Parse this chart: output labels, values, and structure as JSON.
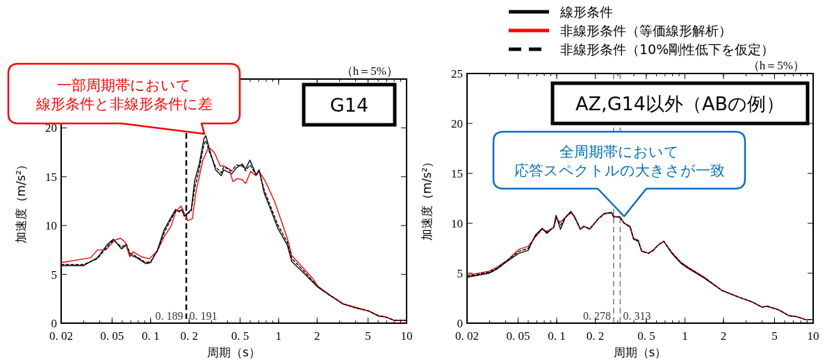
{
  "chart_data": [
    {
      "type": "line",
      "xlabel": "周期（s）",
      "ylabel": "加速度（m/s²）",
      "log": "x",
      "xlim": [
        0.02,
        10
      ],
      "ylim": [
        0,
        25
      ],
      "xticks": [
        {
          "value": 0.02,
          "label": "0. 02"
        },
        {
          "value": 0.05,
          "label": "0. 05"
        },
        {
          "value": 0.1,
          "label": "0. 1"
        },
        {
          "value": 0.2,
          "label": "0. 2"
        },
        {
          "value": 0.5,
          "label": "0. 5"
        },
        1,
        2,
        5,
        10
      ],
      "yticks": [
        0,
        5,
        10,
        15,
        20,
        {
          "value": 25,
          "label": null
        }
      ],
      "grid": false,
      "legend": false,
      "series": [
        {
          "color": "#000000",
          "line_style": "solid",
          "x": [
            0.02,
            0.03,
            0.0384,
            0.0462,
            0.0513,
            0.0593,
            0.0646,
            0.0688,
            0.0779,
            0.0918,
            0.1,
            0.113,
            0.128,
            0.144,
            0.157,
            0.167,
            0.176,
            0.183,
            0.195,
            0.208,
            0.221,
            0.24,
            0.261,
            0.27,
            0.29,
            0.322,
            0.357,
            0.372,
            0.431,
            0.468,
            0.52,
            0.553,
            0.597,
            0.667,
            0.705,
            0.773,
            0.875,
            0.992,
            1.17,
            1.27,
            1.64,
            2.02,
            2.48,
            3.19,
            3.93,
            5.05,
            6.1,
            6.76,
            7.98,
            9.44,
            10
          ],
          "values": [
            5.9,
            5.9,
            6.7,
            8.1,
            8.6,
            7.6,
            8.0,
            7.0,
            6.7,
            6.1,
            6.2,
            7.5,
            9.6,
            10.8,
            11.65,
            11.4,
            11.65,
            10.95,
            11.3,
            11.65,
            14.6,
            16.3,
            18.9,
            19.2,
            17.7,
            15.7,
            15.1,
            15.7,
            15.3,
            15.9,
            16.3,
            15.8,
            16.7,
            15.2,
            15.7,
            13.3,
            11.5,
            9.65,
            8.0,
            6.3,
            4.9,
            3.7,
            2.9,
            1.96,
            1.6,
            1.25,
            0.71,
            0.66,
            0.3,
            0.3,
            0.3
          ]
        },
        {
          "color": "#ff0000",
          "line_style": "solid",
          "x": [
            0.02,
            0.034,
            0.0384,
            0.0447,
            0.0524,
            0.0581,
            0.0632,
            0.0688,
            0.0732,
            0.0846,
            0.0978,
            0.113,
            0.128,
            0.144,
            0.157,
            0.173,
            0.183,
            0.195,
            0.212,
            0.226,
            0.256,
            0.284,
            0.309,
            0.322,
            0.35,
            0.372,
            0.413,
            0.439,
            0.477,
            0.52,
            0.553,
            0.605,
            0.667,
            0.705,
            0.79,
            0.928,
            1.17,
            1.27,
            1.57,
            1.84,
            2.02,
            2.48,
            3.19,
            3.93,
            5.05,
            6.1,
            6.76,
            7.98,
            10
          ],
          "values": [
            6.2,
            6.7,
            7.5,
            7.5,
            8.5,
            8.7,
            8.3,
            6.8,
            7.3,
            6.8,
            6.6,
            7.4,
            8.9,
            9.9,
            11.4,
            12.0,
            11.3,
            10.5,
            10.7,
            13.4,
            16.7,
            18.0,
            17.6,
            17.2,
            16.1,
            16.1,
            15.8,
            14.5,
            14.8,
            14.7,
            14.3,
            15.55,
            15.1,
            15.55,
            14.5,
            12.5,
            8.7,
            6.9,
            5.6,
            4.6,
            3.8,
            2.95,
            2.0,
            1.65,
            1.25,
            0.75,
            0.66,
            0.3,
            0.3
          ]
        },
        {
          "color": "#000000",
          "line_style": "dashed",
          "x": [
            0.02,
            0.03,
            0.0384,
            0.0462,
            0.0513,
            0.0593,
            0.0646,
            0.0688,
            0.0779,
            0.0918,
            0.1,
            0.113,
            0.128,
            0.144,
            0.157,
            0.167,
            0.176,
            0.183,
            0.195,
            0.208,
            0.221,
            0.24,
            0.261,
            0.27,
            0.29,
            0.322,
            0.357,
            0.372,
            0.431,
            0.468,
            0.52,
            0.553,
            0.597,
            0.667,
            0.705,
            0.773,
            0.875,
            0.992,
            1.17,
            1.27,
            1.64,
            2.02,
            2.48,
            3.19,
            3.93,
            5.05,
            6.1,
            6.76,
            7.98,
            9.44,
            10
          ],
          "values": [
            6.0,
            6.0,
            6.6,
            7.9,
            8.5,
            7.8,
            8.1,
            7.2,
            6.8,
            6.2,
            6.3,
            7.4,
            9.3,
            10.6,
            11.5,
            11.5,
            11.6,
            11.0,
            11.2,
            11.5,
            13.8,
            15.8,
            18.3,
            18.7,
            17.4,
            16.0,
            15.4,
            16.0,
            15.6,
            16.2,
            16.1,
            15.6,
            16.2,
            15.2,
            15.6,
            13.6,
            11.8,
            10.0,
            8.3,
            6.6,
            5.1,
            3.75,
            2.9,
            1.96,
            1.6,
            1.25,
            0.71,
            0.66,
            0.3,
            0.3,
            0.3
          ]
        }
      ],
      "ref_lines": [
        {
          "axis": "x",
          "value": 0.189,
          "label": "0. 189",
          "color": "#000000",
          "line_style": "dashed"
        },
        {
          "axis": "x",
          "value": 0.191,
          "label": "0. 191",
          "color": "#000000",
          "line_style": "dashed"
        }
      ],
      "annotations": [
        "（h＝5%）",
        "G14",
        "一部周期帯において",
        "線形条件と非線形条件に差"
      ]
    },
    {
      "type": "line",
      "xlabel": "周期（s）",
      "ylabel": "加速度（m/s²）",
      "log": "x",
      "xlim": [
        0.02,
        10
      ],
      "ylim": [
        0,
        25
      ],
      "xticks": [
        {
          "value": 0.02,
          "label": "0. 02"
        },
        {
          "value": 0.05,
          "label": "0. 05"
        },
        {
          "value": 0.1,
          "label": "0. 1"
        },
        {
          "value": 0.2,
          "label": "0. 2"
        },
        {
          "value": 0.5,
          "label": "0. 5"
        },
        1,
        2,
        5,
        10
      ],
      "yticks": [
        0,
        5,
        10,
        15,
        20,
        25
      ],
      "grid": false,
      "legend": "top",
      "series": [
        {
          "name": "線形条件",
          "color": "#000000",
          "line_style": "solid",
          "x": [
            0.02,
            0.0296,
            0.0342,
            0.0412,
            0.0508,
            0.06,
            0.068,
            0.077,
            0.0838,
            0.0948,
            0.099,
            0.107,
            0.117,
            0.129,
            0.138,
            0.153,
            0.163,
            0.181,
            0.213,
            0.236,
            0.268,
            0.279,
            0.31,
            0.337,
            0.374,
            0.398,
            0.433,
            0.46,
            0.522,
            0.568,
            0.616,
            0.684,
            0.79,
            0.93,
            1.06,
            1.42,
            1.93,
            2.64,
            3.32,
            4.0,
            4.36,
            5.36,
            6.46,
            7.47,
            8.63,
            10
          ],
          "values": [
            4.6,
            5.0,
            5.4,
            6.2,
            7.0,
            7.3,
            8.8,
            9.5,
            9.0,
            9.6,
            10.8,
            9.4,
            10.6,
            11.2,
            10.6,
            9.4,
            9.7,
            9.4,
            10.5,
            11.0,
            11.1,
            10.7,
            10.6,
            10.0,
            9.6,
            8.4,
            8.2,
            7.2,
            7.0,
            7.3,
            7.8,
            8.2,
            7.0,
            6.0,
            5.5,
            4.5,
            3.3,
            2.6,
            2.15,
            1.6,
            1.7,
            1.35,
            0.75,
            0.65,
            0.37,
            0.37
          ]
        },
        {
          "name": "非線形条件（等価線形解析）",
          "color": "#ff0000",
          "line_style": "solid",
          "x": [
            0.02,
            0.0296,
            0.0342,
            0.0412,
            0.0508,
            0.06,
            0.068,
            0.077,
            0.0838,
            0.0948,
            0.099,
            0.107,
            0.117,
            0.129,
            0.138,
            0.153,
            0.163,
            0.181,
            0.213,
            0.236,
            0.268,
            0.279,
            0.31,
            0.337,
            0.374,
            0.398,
            0.433,
            0.46,
            0.522,
            0.568,
            0.616,
            0.684,
            0.79,
            0.93,
            1.06,
            1.42,
            1.93,
            2.64,
            3.32,
            4.0,
            4.36,
            5.36,
            6.46,
            7.47,
            8.63,
            10
          ],
          "values": [
            4.8,
            5.2,
            5.6,
            6.3,
            7.4,
            7.7,
            8.6,
            9.4,
            9.2,
            9.55,
            10.5,
            10.1,
            10.6,
            11.05,
            10.7,
            9.45,
            9.7,
            9.45,
            10.5,
            10.95,
            11.05,
            10.6,
            10.7,
            10.0,
            9.7,
            8.5,
            8.3,
            7.25,
            7.0,
            7.35,
            7.8,
            8.2,
            7.1,
            6.1,
            5.6,
            4.6,
            3.3,
            2.6,
            2.15,
            1.6,
            1.7,
            1.35,
            0.75,
            0.65,
            0.37,
            0.37
          ]
        },
        {
          "name": "非線形条件（10%剛性低下を仮定）",
          "color": "#000000",
          "line_style": "dashed",
          "x": [
            0.02,
            0.0296,
            0.0342,
            0.0412,
            0.0508,
            0.06,
            0.068,
            0.077,
            0.0838,
            0.0948,
            0.099,
            0.107,
            0.117,
            0.129,
            0.138,
            0.153,
            0.163,
            0.181,
            0.213,
            0.236,
            0.268,
            0.279,
            0.31,
            0.337,
            0.374,
            0.398,
            0.433,
            0.46,
            0.522,
            0.568,
            0.616,
            0.684,
            0.79,
            0.93,
            1.06,
            1.42,
            1.93,
            2.64,
            3.32,
            4.0,
            4.36,
            5.36,
            6.46,
            7.47,
            8.63,
            10
          ],
          "values": [
            4.7,
            5.1,
            5.5,
            6.3,
            7.2,
            7.5,
            8.7,
            9.45,
            9.1,
            9.6,
            10.6,
            9.8,
            10.6,
            11.1,
            10.65,
            9.4,
            9.7,
            9.45,
            10.5,
            10.95,
            11.05,
            10.65,
            10.65,
            10.0,
            9.65,
            8.45,
            8.25,
            7.2,
            7.0,
            7.3,
            7.8,
            8.2,
            7.05,
            6.05,
            5.55,
            4.55,
            3.3,
            2.6,
            2.15,
            1.6,
            1.7,
            1.35,
            0.75,
            0.65,
            0.37,
            0.37
          ]
        }
      ],
      "ref_lines": [
        {
          "axis": "x",
          "value": 0.278,
          "label": "0. 278",
          "color": "#808080",
          "line_style": "dashed"
        },
        {
          "axis": "x",
          "value": 0.313,
          "label": "0. 313",
          "color": "#808080",
          "line_style": "dashed"
        }
      ],
      "annotations": [
        "（h＝5%）",
        "AZ,G14以外（ABの例）",
        "全周期帯において",
        "応答スペクトルの大きさが一致"
      ]
    }
  ]
}
